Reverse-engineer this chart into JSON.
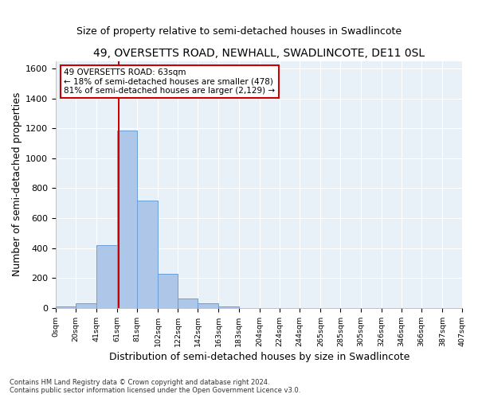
{
  "title": "49, OVERSETTS ROAD, NEWHALL, SWADLINCOTE, DE11 0SL",
  "subtitle": "Size of property relative to semi-detached houses in Swadlincote",
  "xlabel": "Distribution of semi-detached houses by size in Swadlincote",
  "ylabel": "Number of semi-detached properties",
  "footnote": "Contains HM Land Registry data © Crown copyright and database right 2024.\nContains public sector information licensed under the Open Government Licence v3.0.",
  "annotation_title": "49 OVERSETTS ROAD: 63sqm",
  "annotation_line1": "← 18% of semi-detached houses are smaller (478)",
  "annotation_line2": "81% of semi-detached houses are larger (2,129) →",
  "property_size": 63,
  "bin_edges": [
    0,
    20,
    41,
    61,
    81,
    102,
    122,
    142,
    163,
    183,
    204,
    224,
    244,
    265,
    285,
    305,
    326,
    346,
    366,
    387,
    407
  ],
  "bar_values": [
    10,
    30,
    420,
    1185,
    715,
    230,
    65,
    30,
    10,
    0,
    0,
    0,
    0,
    0,
    0,
    0,
    0,
    0,
    0,
    0
  ],
  "bar_color": "#aec6e8",
  "bar_edge_color": "#6a9fd8",
  "vline_color": "#cc0000",
  "ylim": [
    0,
    1650
  ],
  "yticks": [
    0,
    200,
    400,
    600,
    800,
    1000,
    1200,
    1400,
    1600
  ],
  "bg_color": "#e8f0f8",
  "grid_color": "#d0d8e8",
  "annotation_box_color": "#ffffff",
  "annotation_box_edge": "#cc0000",
  "title_fontsize": 10,
  "subtitle_fontsize": 9,
  "axis_label_fontsize": 9
}
